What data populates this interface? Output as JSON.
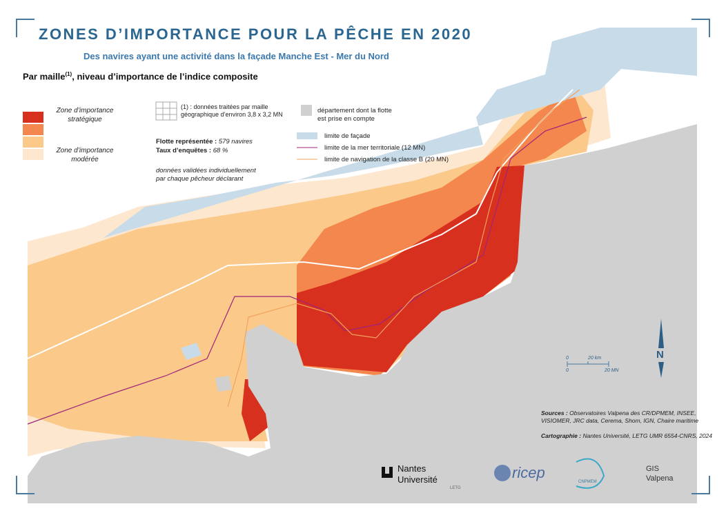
{
  "title": "ZONES D’IMPORTANCE POUR LA PÊCHE EN 2020",
  "subtitle": "Des navires ayant une activité dans la façade Manche Est - Mer du Nord",
  "section": {
    "text": "Par maille",
    "sup": "(1)",
    "rest": ", niveau d’importance de l’indice composite"
  },
  "legend": {
    "top_label": [
      "Zone d’importance",
      "stratégique"
    ],
    "bottom_label": [
      "Zone d’importance",
      "modérée"
    ],
    "colors": [
      "#d7301f",
      "#f4874e",
      "#fbc98a",
      "#fde7cf"
    ]
  },
  "notes": {
    "grid_note": [
      "(1) :  données traitées par maille",
      "géographique d’environ 3,8 x 3,2 MN"
    ],
    "fleet_label": "Flotte représentée :",
    "fleet_value": "579 navires",
    "survey_label": "Taux d’enquêtes :",
    "survey_value": "68 %",
    "validated": [
      "données validées individuellement",
      "par chaque pêcheur déclarant"
    ],
    "department": [
      "département dont la flotte",
      "est prise en compte"
    ],
    "facade": "limite de façade",
    "territorial": "limite de la mer territoriale (12 MN)",
    "classB": "limite de navigation de la classe B (20 MN)"
  },
  "scale": {
    "km0": "0",
    "km": "20 km",
    "mn0": "0",
    "mn": "20 MN"
  },
  "north": "N",
  "sources": {
    "label": "Sources :",
    "text": [
      "Observatoires Valpena des CR/DPMEM, INSEE,",
      "VISIOMER, JRC data, Cerema, Shom, IGN, Chaire maritime"
    ]
  },
  "cartography": {
    "label": "Cartographie :",
    "text": "Nantes Université, LETG UMR 6554-CNRS, 2024"
  },
  "logos": [
    "Nantes",
    "Université",
    "LETG",
    "ricep",
    "CNPMEM",
    "GIS",
    "Valpena"
  ]
}
